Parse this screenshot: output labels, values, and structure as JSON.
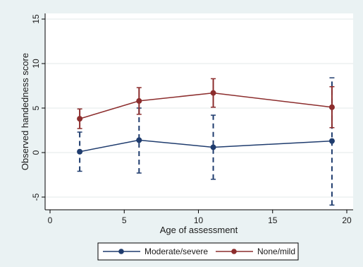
{
  "chart_data": {
    "type": "line",
    "xlabel": "Age of assessment",
    "ylabel": "Observed handedness score",
    "xlim": [
      0,
      20
    ],
    "ylim": [
      -6,
      15
    ],
    "xticks": [
      0,
      5,
      10,
      15,
      20
    ],
    "yticks": [
      -5,
      0,
      5,
      10,
      15
    ],
    "grid": "y-major",
    "legend_position": "bottom",
    "series": [
      {
        "name": "Moderate/severe",
        "color": "#1f3c6e",
        "error_bar_style": "dashed",
        "points": [
          {
            "x": 2,
            "y": 0.1,
            "lo": -2.1,
            "hi": 2.3
          },
          {
            "x": 6,
            "y": 1.4,
            "lo": -2.3,
            "hi": 5.0
          },
          {
            "x": 11,
            "y": 0.6,
            "lo": -3.0,
            "hi": 4.2
          },
          {
            "x": 19,
            "y": 1.3,
            "lo": -5.9,
            "hi": 8.4
          }
        ]
      },
      {
        "name": "None/mild",
        "color": "#8c2d2d",
        "error_bar_style": "solid",
        "points": [
          {
            "x": 2,
            "y": 3.8,
            "lo": 2.7,
            "hi": 4.9
          },
          {
            "x": 6,
            "y": 5.8,
            "lo": 4.3,
            "hi": 7.3
          },
          {
            "x": 11,
            "y": 6.7,
            "lo": 5.1,
            "hi": 8.3
          },
          {
            "x": 19,
            "y": 5.1,
            "lo": 2.8,
            "hi": 7.4
          }
        ]
      }
    ]
  }
}
